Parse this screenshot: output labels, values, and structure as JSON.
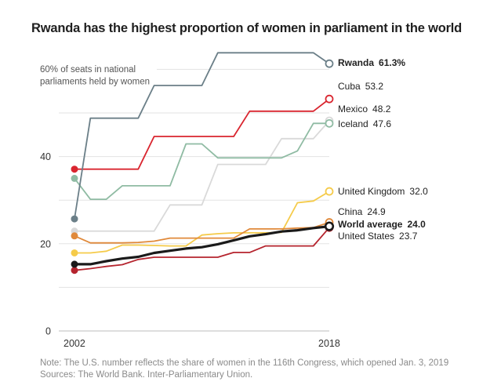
{
  "chart_data": {
    "type": "line",
    "title": "Rwanda has the highest proportion of women in parliament in the world",
    "ylabel": "60% of seats in national parliaments held by women",
    "annotation_lines": [
      "60% of seats in national",
      "parliaments held by women"
    ],
    "xlabel": "",
    "x_ticks": [
      "2002",
      "2018"
    ],
    "y_ticks": [
      "0",
      "20",
      "40"
    ],
    "xlim": [
      2002,
      2018
    ],
    "ylim": [
      0,
      60
    ],
    "grid": true,
    "gridlines": [
      0,
      10,
      20,
      30,
      40,
      50,
      60
    ],
    "x": [
      2002,
      2003,
      2004,
      2005,
      2006,
      2007,
      2008,
      2009,
      2010,
      2011,
      2012,
      2013,
      2014,
      2015,
      2016,
      2017,
      2018
    ],
    "series": [
      {
        "name": "Rwanda",
        "label": "Rwanda",
        "value_label": "61.3%",
        "bold": true,
        "color": "#6b7f88",
        "values": [
          25.7,
          48.8,
          48.8,
          48.8,
          48.8,
          56.3,
          56.3,
          56.3,
          56.3,
          63.8,
          63.8,
          63.8,
          63.8,
          63.8,
          63.8,
          63.8,
          61.3
        ]
      },
      {
        "name": "Cuba",
        "label": "Cuba",
        "value_label": "53.2",
        "bold": false,
        "color": "#d9252f",
        "values": [
          37.1,
          37.1,
          37.1,
          37.1,
          37.1,
          44.6,
          44.6,
          44.6,
          44.6,
          44.6,
          44.6,
          50.4,
          50.4,
          50.4,
          50.4,
          50.4,
          53.2
        ]
      },
      {
        "name": "Mexico",
        "label": "Mexico",
        "value_label": "48.2",
        "bold": false,
        "color": "#d9d9d9",
        "values": [
          22.9,
          22.9,
          22.9,
          22.9,
          22.9,
          22.9,
          28.9,
          28.9,
          28.9,
          38.2,
          38.2,
          38.2,
          38.2,
          44.1,
          44.1,
          44.1,
          48.2
        ]
      },
      {
        "name": "Iceland",
        "label": "Iceland",
        "value_label": "47.6",
        "bold": false,
        "color": "#8fbba3",
        "values": [
          35.0,
          30.2,
          30.2,
          33.3,
          33.3,
          33.3,
          33.3,
          42.9,
          42.9,
          39.7,
          39.7,
          39.7,
          39.7,
          39.7,
          41.3,
          47.6,
          47.6
        ]
      },
      {
        "name": "United Kingdom",
        "label": "United Kingdom",
        "value_label": "32.0",
        "bold": false,
        "color": "#f5cb4a",
        "values": [
          17.9,
          17.9,
          18.3,
          19.7,
          19.7,
          19.6,
          19.5,
          19.5,
          22.0,
          22.3,
          22.5,
          22.5,
          22.5,
          22.6,
          29.4,
          29.8,
          32.0
        ]
      },
      {
        "name": "China",
        "label": "China",
        "value_label": "24.9",
        "bold": false,
        "color": "#e0893a",
        "values": [
          21.8,
          20.2,
          20.2,
          20.2,
          20.3,
          20.6,
          21.3,
          21.3,
          21.3,
          21.3,
          21.3,
          23.4,
          23.4,
          23.4,
          23.6,
          23.7,
          24.9
        ]
      },
      {
        "name": "World average",
        "label": "World average",
        "value_label": "24.0",
        "bold": true,
        "color": "#1a1a1a",
        "values": [
          15.3,
          15.3,
          16.0,
          16.6,
          17.0,
          17.9,
          18.4,
          18.9,
          19.2,
          19.9,
          20.8,
          21.7,
          22.2,
          22.8,
          23.1,
          23.6,
          24.0
        ]
      },
      {
        "name": "United States",
        "label": "United States",
        "value_label": "23.7",
        "bold": false,
        "color": "#b5242e",
        "values": [
          13.9,
          14.3,
          14.8,
          15.2,
          16.4,
          16.9,
          16.9,
          16.9,
          16.9,
          16.9,
          18.0,
          18.0,
          19.5,
          19.5,
          19.5,
          19.5,
          23.7
        ]
      }
    ]
  },
  "footer": {
    "note": "Note: The U.S. number reflects the share of women in the 116th Congress, which opened Jan. 3, 2019",
    "sources": "Sources: The World Bank. Inter-Parliamentary Union."
  }
}
